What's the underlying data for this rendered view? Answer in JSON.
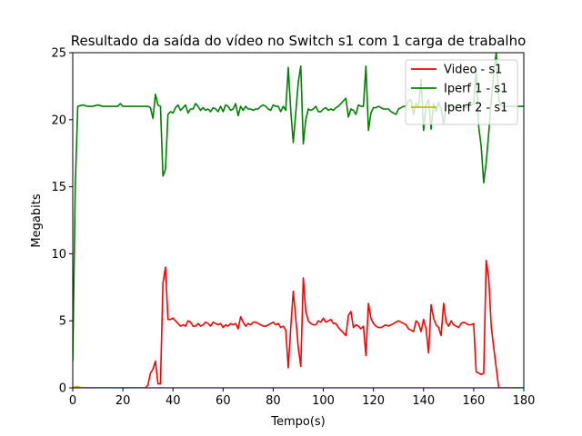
{
  "chart_data": {
    "type": "line",
    "title": "Resultado da saída do vídeo no Switch s1 com 1 carga de trabalho",
    "xlabel": "Tempo(s)",
    "ylabel": "Megabits",
    "xlim": [
      0,
      180
    ],
    "ylim": [
      0,
      25
    ],
    "xticks": [
      0,
      20,
      40,
      60,
      80,
      100,
      120,
      140,
      160,
      180
    ],
    "yticks": [
      0,
      5,
      10,
      15,
      20,
      25
    ],
    "grid": false,
    "legend_position": "top-right",
    "series": [
      {
        "name": "Video - s1",
        "color": "#ff0000",
        "points": [
          [
            0,
            0
          ],
          [
            10,
            0
          ],
          [
            20,
            0
          ],
          [
            29,
            0
          ],
          [
            30,
            0.2
          ],
          [
            31,
            1.1
          ],
          [
            32,
            1.4
          ],
          [
            33,
            2.0
          ],
          [
            34,
            0.3
          ],
          [
            35,
            0.3
          ],
          [
            36,
            7.8
          ],
          [
            37,
            9.0
          ],
          [
            38,
            5.1
          ],
          [
            39,
            5.1
          ],
          [
            40,
            5.2
          ],
          [
            41,
            5.0
          ],
          [
            42,
            4.8
          ],
          [
            43,
            4.6
          ],
          [
            44,
            4.7
          ],
          [
            45,
            4.6
          ],
          [
            46,
            5.0
          ],
          [
            47,
            4.9
          ],
          [
            48,
            4.6
          ],
          [
            49,
            4.6
          ],
          [
            50,
            4.8
          ],
          [
            51,
            4.6
          ],
          [
            52,
            4.7
          ],
          [
            53,
            4.9
          ],
          [
            54,
            4.8
          ],
          [
            55,
            4.6
          ],
          [
            56,
            4.9
          ],
          [
            57,
            4.8
          ],
          [
            58,
            4.7
          ],
          [
            59,
            4.8
          ],
          [
            60,
            4.5
          ],
          [
            61,
            4.7
          ],
          [
            62,
            4.6
          ],
          [
            63,
            4.8
          ],
          [
            64,
            4.7
          ],
          [
            65,
            4.8
          ],
          [
            66,
            4.4
          ],
          [
            67,
            5.3
          ],
          [
            68,
            4.9
          ],
          [
            69,
            4.6
          ],
          [
            70,
            4.8
          ],
          [
            71,
            4.7
          ],
          [
            72,
            4.9
          ],
          [
            73,
            4.9
          ],
          [
            74,
            4.8
          ],
          [
            75,
            4.7
          ],
          [
            76,
            4.6
          ],
          [
            77,
            4.6
          ],
          [
            78,
            4.7
          ],
          [
            79,
            4.8
          ],
          [
            80,
            4.9
          ],
          [
            81,
            4.7
          ],
          [
            82,
            4.8
          ],
          [
            83,
            4.5
          ],
          [
            84,
            4.6
          ],
          [
            85,
            4.3
          ],
          [
            86,
            1.5
          ],
          [
            87,
            4.5
          ],
          [
            88,
            7.2
          ],
          [
            89,
            5.2
          ],
          [
            90,
            3.0
          ],
          [
            91,
            1.6
          ],
          [
            92,
            8.2
          ],
          [
            93,
            5.7
          ],
          [
            94,
            5.0
          ],
          [
            95,
            4.8
          ],
          [
            96,
            4.7
          ],
          [
            97,
            4.7
          ],
          [
            98,
            5.0
          ],
          [
            99,
            4.9
          ],
          [
            100,
            5.2
          ],
          [
            101,
            4.9
          ],
          [
            102,
            5.0
          ],
          [
            103,
            5.1
          ],
          [
            104,
            4.8
          ],
          [
            105,
            4.8
          ],
          [
            106,
            4.5
          ],
          [
            107,
            4.3
          ],
          [
            108,
            4.1
          ],
          [
            109,
            3.9
          ],
          [
            110,
            5.4
          ],
          [
            111,
            5.7
          ],
          [
            112,
            4.5
          ],
          [
            113,
            4.7
          ],
          [
            114,
            4.6
          ],
          [
            115,
            4.4
          ],
          [
            116,
            4.6
          ],
          [
            117,
            2.4
          ],
          [
            118,
            6.3
          ],
          [
            119,
            5.2
          ],
          [
            120,
            4.8
          ],
          [
            121,
            4.6
          ],
          [
            122,
            4.5
          ],
          [
            123,
            4.5
          ],
          [
            124,
            4.6
          ],
          [
            125,
            4.7
          ],
          [
            126,
            4.6
          ],
          [
            127,
            4.7
          ],
          [
            128,
            4.8
          ],
          [
            129,
            4.9
          ],
          [
            130,
            5.0
          ],
          [
            131,
            4.9
          ],
          [
            132,
            4.8
          ],
          [
            133,
            4.7
          ],
          [
            134,
            4.4
          ],
          [
            135,
            4.3
          ],
          [
            136,
            4.2
          ],
          [
            137,
            5.0
          ],
          [
            138,
            4.8
          ],
          [
            139,
            4.2
          ],
          [
            140,
            5.1
          ],
          [
            141,
            4.4
          ],
          [
            142,
            2.6
          ],
          [
            143,
            6.2
          ],
          [
            144,
            5.2
          ],
          [
            145,
            4.7
          ],
          [
            146,
            4.5
          ],
          [
            147,
            3.9
          ],
          [
            148,
            6.3
          ],
          [
            149,
            4.9
          ],
          [
            150,
            4.6
          ],
          [
            151,
            5.0
          ],
          [
            152,
            4.7
          ],
          [
            153,
            4.6
          ],
          [
            154,
            4.5
          ],
          [
            155,
            4.8
          ],
          [
            156,
            4.9
          ],
          [
            157,
            4.8
          ],
          [
            158,
            4.7
          ],
          [
            159,
            4.7
          ],
          [
            160,
            4.8
          ],
          [
            161,
            1.2
          ],
          [
            162,
            1.1
          ],
          [
            163,
            1.0
          ],
          [
            164,
            1.1
          ],
          [
            165,
            9.5
          ],
          [
            166,
            8.2
          ],
          [
            167,
            4.6
          ],
          [
            168,
            3.0
          ],
          [
            169,
            1.5
          ],
          [
            170,
            0
          ],
          [
            175,
            0
          ],
          [
            180,
            0
          ]
        ]
      },
      {
        "name": "Iperf 1 - s1",
        "color": "#008000",
        "points": [
          [
            0,
            2
          ],
          [
            1,
            15
          ],
          [
            2,
            21.0
          ],
          [
            4,
            21.1
          ],
          [
            6,
            21.0
          ],
          [
            8,
            21.0
          ],
          [
            10,
            21.1
          ],
          [
            12,
            21.0
          ],
          [
            14,
            21.0
          ],
          [
            16,
            21.0
          ],
          [
            18,
            21.0
          ],
          [
            19,
            21.2
          ],
          [
            20,
            21.0
          ],
          [
            22,
            21.0
          ],
          [
            24,
            21.0
          ],
          [
            26,
            21.0
          ],
          [
            28,
            21.0
          ],
          [
            30,
            21.0
          ],
          [
            31,
            20.9
          ],
          [
            32,
            20.1
          ],
          [
            33,
            21.9
          ],
          [
            34,
            21.1
          ],
          [
            35,
            21.0
          ],
          [
            36,
            15.8
          ],
          [
            37,
            16.3
          ],
          [
            38,
            20.4
          ],
          [
            39,
            20.6
          ],
          [
            40,
            20.5
          ],
          [
            41,
            20.9
          ],
          [
            42,
            21.1
          ],
          [
            43,
            20.7
          ],
          [
            44,
            20.9
          ],
          [
            45,
            21.1
          ],
          [
            46,
            20.5
          ],
          [
            47,
            20.8
          ],
          [
            48,
            20.8
          ],
          [
            49,
            21.2
          ],
          [
            50,
            21.0
          ],
          [
            51,
            20.7
          ],
          [
            52,
            20.9
          ],
          [
            53,
            20.7
          ],
          [
            54,
            20.8
          ],
          [
            55,
            20.6
          ],
          [
            56,
            20.9
          ],
          [
            57,
            20.8
          ],
          [
            58,
            20.6
          ],
          [
            59,
            21.0
          ],
          [
            60,
            20.6
          ],
          [
            61,
            21.1
          ],
          [
            62,
            21.0
          ],
          [
            63,
            20.7
          ],
          [
            64,
            20.8
          ],
          [
            65,
            21.2
          ],
          [
            66,
            20.3
          ],
          [
            67,
            21.0
          ],
          [
            68,
            20.7
          ],
          [
            69,
            21.0
          ],
          [
            70,
            20.8
          ],
          [
            71,
            20.8
          ],
          [
            72,
            20.7
          ],
          [
            73,
            20.8
          ],
          [
            74,
            20.8
          ],
          [
            75,
            21.0
          ],
          [
            76,
            21.1
          ],
          [
            77,
            21.0
          ],
          [
            78,
            20.8
          ],
          [
            79,
            20.7
          ],
          [
            80,
            21.1
          ],
          [
            81,
            21.0
          ],
          [
            82,
            21.0
          ],
          [
            83,
            20.6
          ],
          [
            84,
            21.0
          ],
          [
            85,
            20.7
          ],
          [
            86,
            23.9
          ],
          [
            87,
            20.7
          ],
          [
            88,
            18.3
          ],
          [
            89,
            20.5
          ],
          [
            90,
            22.8
          ],
          [
            91,
            24.0
          ],
          [
            92,
            18.2
          ],
          [
            93,
            20.0
          ],
          [
            94,
            20.8
          ],
          [
            95,
            20.7
          ],
          [
            96,
            20.8
          ],
          [
            97,
            21.0
          ],
          [
            98,
            20.6
          ],
          [
            99,
            20.6
          ],
          [
            100,
            20.8
          ],
          [
            101,
            20.9
          ],
          [
            102,
            20.7
          ],
          [
            103,
            20.8
          ],
          [
            104,
            20.7
          ],
          [
            105,
            20.9
          ],
          [
            106,
            21.0
          ],
          [
            107,
            21.2
          ],
          [
            108,
            21.4
          ],
          [
            109,
            21.6
          ],
          [
            110,
            20.2
          ],
          [
            111,
            20.8
          ],
          [
            112,
            20.7
          ],
          [
            113,
            20.4
          ],
          [
            114,
            21.1
          ],
          [
            115,
            21.0
          ],
          [
            116,
            21.0
          ],
          [
            117,
            24.0
          ],
          [
            118,
            19.2
          ],
          [
            119,
            20.5
          ],
          [
            120,
            20.9
          ],
          [
            121,
            20.9
          ],
          [
            122,
            21.0
          ],
          [
            123,
            20.9
          ],
          [
            124,
            20.8
          ],
          [
            125,
            20.8
          ],
          [
            126,
            20.8
          ],
          [
            127,
            20.6
          ],
          [
            128,
            20.5
          ],
          [
            129,
            20.4
          ],
          [
            130,
            20.8
          ],
          [
            131,
            20.9
          ],
          [
            132,
            21.0
          ],
          [
            133,
            21.0
          ],
          [
            134,
            21.4
          ],
          [
            135,
            21.5
          ],
          [
            136,
            20.4
          ],
          [
            137,
            21.2
          ],
          [
            138,
            20.9
          ],
          [
            139,
            23.0
          ],
          [
            140,
            19.2
          ],
          [
            141,
            21.1
          ],
          [
            142,
            21.5
          ],
          [
            143,
            19.3
          ],
          [
            144,
            21.2
          ],
          [
            145,
            20.6
          ],
          [
            146,
            21.3
          ],
          [
            147,
            20.8
          ],
          [
            148,
            19.7
          ],
          [
            149,
            21.0
          ],
          [
            150,
            21.1
          ],
          [
            151,
            21.0
          ],
          [
            152,
            20.9
          ],
          [
            153,
            21.0
          ],
          [
            154,
            21.1
          ],
          [
            155,
            21.0
          ],
          [
            156,
            21.0
          ],
          [
            157,
            20.9
          ],
          [
            158,
            21.0
          ],
          [
            159,
            21.1
          ],
          [
            160,
            21.2
          ],
          [
            161,
            23.8
          ],
          [
            162,
            19.5
          ],
          [
            163,
            18.0
          ],
          [
            164,
            15.3
          ],
          [
            165,
            16.8
          ],
          [
            166,
            19.0
          ],
          [
            167,
            21.4
          ],
          [
            168,
            23.5
          ],
          [
            169,
            25.0
          ],
          [
            170,
            21.5
          ],
          [
            171,
            21.0
          ],
          [
            172,
            21.0
          ],
          [
            174,
            21.0
          ],
          [
            176,
            21.0
          ],
          [
            178,
            21.0
          ],
          [
            180,
            21.0
          ]
        ]
      },
      {
        "name": "Iperf 2 - s1",
        "color": "#bfbf00",
        "points": [
          [
            0,
            0
          ],
          [
            1,
            0.1
          ],
          [
            2,
            0.1
          ],
          [
            3,
            0.05
          ],
          [
            5,
            0
          ],
          [
            180,
            0
          ]
        ]
      }
    ]
  }
}
